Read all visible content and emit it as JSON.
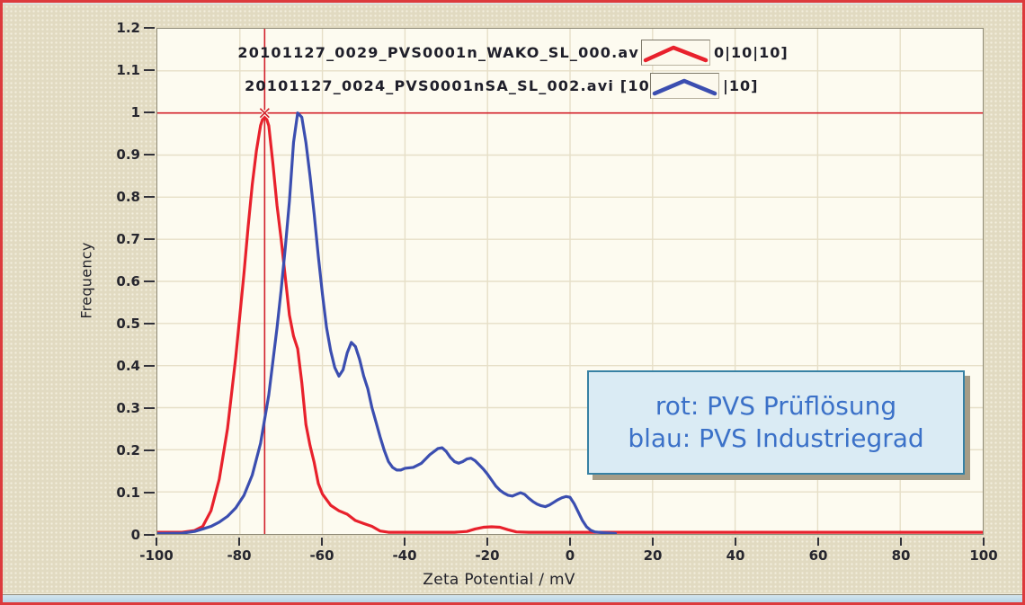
{
  "window": {
    "border_color": "#dd3a3c",
    "background_color": "#e1dac1",
    "plot_background": "#fdfbf0",
    "grid_color": "#e6dfc7",
    "bottom_strip_color": "#c3dcea"
  },
  "chart_data": {
    "type": "line",
    "title": "",
    "xlabel": "Zeta Potential / mV",
    "ylabel": "Frequency",
    "xlim": [
      -100,
      100
    ],
    "ylim": [
      0,
      1.2
    ],
    "x_tick_labels": [
      "-100",
      "-80",
      "-60",
      "-40",
      "-20",
      "0",
      "20",
      "40",
      "60",
      "80",
      "100"
    ],
    "y_tick_labels": [
      "0",
      "0.1",
      "0.2",
      "0.3",
      "0.4",
      "0.5",
      "0.6",
      "0.7",
      "0.8",
      "0.9",
      "1",
      "1.1",
      "1.2"
    ],
    "grid": true,
    "legend_position": "top-overlay",
    "cursor": {
      "x": -74,
      "y": 1.0,
      "color": "#d2202a"
    },
    "series": [
      {
        "legend_left": "20101127_0029_PVS0001n_WAKO_SL_000.av",
        "legend_right": "0|10|10]",
        "color": "#e8212c",
        "points": [
          [
            -100,
            0.004
          ],
          [
            -94,
            0.004
          ],
          [
            -91,
            0.008
          ],
          [
            -89,
            0.018
          ],
          [
            -87,
            0.055
          ],
          [
            -85,
            0.13
          ],
          [
            -83,
            0.25
          ],
          [
            -81,
            0.42
          ],
          [
            -80,
            0.52
          ],
          [
            -79,
            0.62
          ],
          [
            -78,
            0.73
          ],
          [
            -77,
            0.83
          ],
          [
            -76,
            0.91
          ],
          [
            -75,
            0.97
          ],
          [
            -74,
            1.0
          ],
          [
            -73,
            0.97
          ],
          [
            -72,
            0.88
          ],
          [
            -71,
            0.78
          ],
          [
            -70,
            0.7
          ],
          [
            -69,
            0.61
          ],
          [
            -68,
            0.52
          ],
          [
            -67,
            0.47
          ],
          [
            -66,
            0.44
          ],
          [
            -65,
            0.36
          ],
          [
            -64,
            0.26
          ],
          [
            -63,
            0.21
          ],
          [
            -62,
            0.17
          ],
          [
            -61,
            0.12
          ],
          [
            -60,
            0.095
          ],
          [
            -58,
            0.068
          ],
          [
            -56,
            0.055
          ],
          [
            -54,
            0.047
          ],
          [
            -52,
            0.032
          ],
          [
            -50,
            0.025
          ],
          [
            -48,
            0.018
          ],
          [
            -46,
            0.007
          ],
          [
            -44,
            0.004
          ],
          [
            -40,
            0.004
          ],
          [
            -34,
            0.004
          ],
          [
            -28,
            0.004
          ],
          [
            -25,
            0.006
          ],
          [
            -23,
            0.012
          ],
          [
            -21,
            0.016
          ],
          [
            -19,
            0.017
          ],
          [
            -17,
            0.016
          ],
          [
            -15,
            0.01
          ],
          [
            -13,
            0.005
          ],
          [
            -10,
            0.004
          ],
          [
            0,
            0.004
          ],
          [
            20,
            0.004
          ],
          [
            40,
            0.004
          ],
          [
            60,
            0.004
          ],
          [
            80,
            0.004
          ],
          [
            100,
            0.004
          ]
        ]
      },
      {
        "legend_left": "20101127_0024_PVS0001nSA_SL_002.avi [10",
        "legend_right": "|10]",
        "color": "#3b4eb0",
        "points": [
          [
            -100,
            0.001
          ],
          [
            -94,
            0.002
          ],
          [
            -91,
            0.006
          ],
          [
            -89,
            0.012
          ],
          [
            -87,
            0.018
          ],
          [
            -85,
            0.028
          ],
          [
            -83,
            0.042
          ],
          [
            -81,
            0.062
          ],
          [
            -79,
            0.092
          ],
          [
            -77,
            0.14
          ],
          [
            -75,
            0.215
          ],
          [
            -73,
            0.33
          ],
          [
            -72,
            0.41
          ],
          [
            -71,
            0.49
          ],
          [
            -70,
            0.58
          ],
          [
            -69,
            0.68
          ],
          [
            -68,
            0.79
          ],
          [
            -67,
            0.93
          ],
          [
            -66,
            1.0
          ],
          [
            -65,
            0.99
          ],
          [
            -64,
            0.93
          ],
          [
            -63,
            0.85
          ],
          [
            -62,
            0.76
          ],
          [
            -61,
            0.66
          ],
          [
            -60,
            0.57
          ],
          [
            -59,
            0.49
          ],
          [
            -58,
            0.435
          ],
          [
            -57,
            0.395
          ],
          [
            -56,
            0.375
          ],
          [
            -55,
            0.39
          ],
          [
            -54,
            0.43
          ],
          [
            -53,
            0.455
          ],
          [
            -52,
            0.445
          ],
          [
            -51,
            0.415
          ],
          [
            -50,
            0.375
          ],
          [
            -49,
            0.345
          ],
          [
            -48,
            0.3
          ],
          [
            -47,
            0.265
          ],
          [
            -46,
            0.23
          ],
          [
            -45,
            0.198
          ],
          [
            -44,
            0.172
          ],
          [
            -43,
            0.158
          ],
          [
            -42,
            0.152
          ],
          [
            -41,
            0.152
          ],
          [
            -40,
            0.156
          ],
          [
            -38,
            0.158
          ],
          [
            -36,
            0.168
          ],
          [
            -34,
            0.188
          ],
          [
            -32,
            0.203
          ],
          [
            -31,
            0.205
          ],
          [
            -30,
            0.196
          ],
          [
            -29,
            0.182
          ],
          [
            -28,
            0.172
          ],
          [
            -27,
            0.168
          ],
          [
            -26,
            0.172
          ],
          [
            -25,
            0.178
          ],
          [
            -24,
            0.18
          ],
          [
            -23,
            0.174
          ],
          [
            -22,
            0.164
          ],
          [
            -21,
            0.154
          ],
          [
            -20,
            0.142
          ],
          [
            -19,
            0.128
          ],
          [
            -18,
            0.114
          ],
          [
            -17,
            0.104
          ],
          [
            -16,
            0.097
          ],
          [
            -15,
            0.092
          ],
          [
            -14,
            0.09
          ],
          [
            -13,
            0.094
          ],
          [
            -12,
            0.098
          ],
          [
            -11,
            0.094
          ],
          [
            -10,
            0.085
          ],
          [
            -9,
            0.077
          ],
          [
            -8,
            0.071
          ],
          [
            -7,
            0.067
          ],
          [
            -6,
            0.065
          ],
          [
            -5,
            0.069
          ],
          [
            -4,
            0.075
          ],
          [
            -3,
            0.081
          ],
          [
            -2,
            0.086
          ],
          [
            -1,
            0.089
          ],
          [
            0,
            0.087
          ],
          [
            1,
            0.072
          ],
          [
            2,
            0.052
          ],
          [
            3,
            0.032
          ],
          [
            4,
            0.017
          ],
          [
            5,
            0.009
          ],
          [
            6,
            0.005
          ],
          [
            8,
            0.003
          ],
          [
            10,
            0.002
          ],
          [
            11,
            0.001
          ]
        ]
      }
    ]
  },
  "annotation": {
    "line1": "rot: PVS Prüflösung",
    "line2": "blau: PVS Industriegrad",
    "text_color": "#3b71c8",
    "border_color": "#3781a4",
    "background": "#daebf4"
  }
}
